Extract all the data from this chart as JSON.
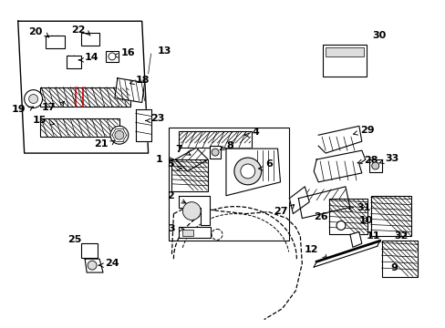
{
  "bg_color": "#ffffff",
  "fig_width": 4.89,
  "fig_height": 3.6,
  "dpi": 100,
  "label_fontsize": 8,
  "label_color": "#000000",
  "line_color": "#000000"
}
